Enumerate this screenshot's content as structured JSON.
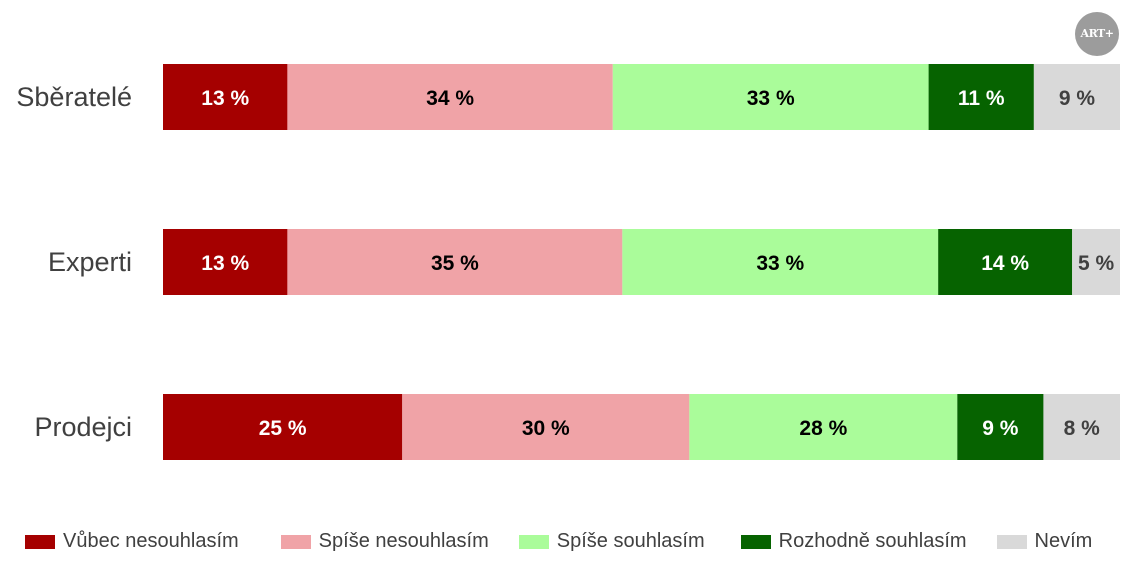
{
  "logo": {
    "text": "ART+"
  },
  "chart_data": {
    "type": "bar",
    "orientation": "horizontal",
    "stacked": true,
    "title": "",
    "xlabel": "",
    "ylabel": "",
    "xlim": [
      0,
      100
    ],
    "grid": false,
    "legend_position": "bottom",
    "value_suffix": " %",
    "categories": [
      "Sběratelé",
      "Experti",
      "Prodejci"
    ],
    "series": [
      {
        "name": "Vůbec nesouhlasím",
        "color": "#a50000",
        "label_color": "#ffffff",
        "values": [
          13,
          13,
          25
        ]
      },
      {
        "name": "Spíše nesouhlasím",
        "color": "#f0a3a7",
        "label_color": "#000000",
        "values": [
          34,
          35,
          30
        ]
      },
      {
        "name": "Spíše souhlasím",
        "color": "#aafc9a",
        "label_color": "#000000",
        "values": [
          33,
          33,
          28
        ]
      },
      {
        "name": "Rozhodně souhlasím",
        "color": "#066300",
        "label_color": "#ffffff",
        "values": [
          11,
          14,
          9
        ]
      },
      {
        "name": "Nevím",
        "color": "#d9d9d9",
        "label_color": "#404040",
        "values": [
          9,
          5,
          8
        ]
      }
    ]
  }
}
